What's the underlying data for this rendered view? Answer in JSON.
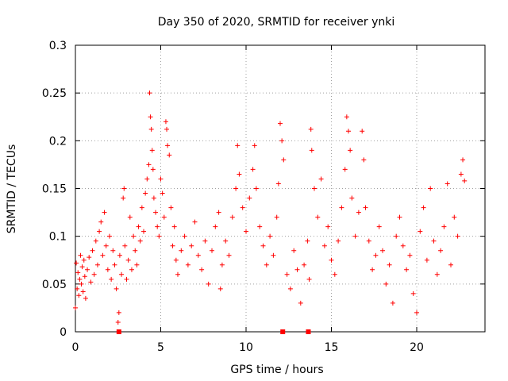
{
  "chart_data": {
    "type": "scatter",
    "title": "Day 350 of 2020, SRMTID for receiver ynki",
    "xlabel": "GPS time / hours",
    "ylabel": "SRMTID / TECUs",
    "xlim": [
      0,
      24
    ],
    "ylim": [
      0,
      0.3
    ],
    "grid": true,
    "x_ticks": [
      0,
      5,
      10,
      15,
      20
    ],
    "x_tick_labels": [
      "0",
      "5",
      "10",
      "15",
      "20"
    ],
    "y_ticks": [
      0,
      0.05,
      0.1,
      0.15,
      0.2,
      0.25,
      0.3
    ],
    "y_tick_labels": [
      "0",
      "0.05",
      "0.1",
      "0.15",
      "0.2",
      "0.25",
      "0.3"
    ],
    "marker": "+",
    "color": "#ff0000",
    "series": [
      {
        "name": "SRMTID",
        "points": [
          [
            0.0,
            0.025
          ],
          [
            0.05,
            0.072
          ],
          [
            0.1,
            0.045
          ],
          [
            0.15,
            0.062
          ],
          [
            0.2,
            0.038
          ],
          [
            0.25,
            0.055
          ],
          [
            0.3,
            0.08
          ],
          [
            0.35,
            0.05
          ],
          [
            0.4,
            0.068
          ],
          [
            0.45,
            0.042
          ],
          [
            0.5,
            0.075
          ],
          [
            0.55,
            0.058
          ],
          [
            0.6,
            0.035
          ],
          [
            0.7,
            0.065
          ],
          [
            0.8,
            0.078
          ],
          [
            0.9,
            0.052
          ],
          [
            1.0,
            0.085
          ],
          [
            1.1,
            0.06
          ],
          [
            1.2,
            0.095
          ],
          [
            1.3,
            0.07
          ],
          [
            1.4,
            0.105
          ],
          [
            1.5,
            0.115
          ],
          [
            1.6,
            0.08
          ],
          [
            1.7,
            0.125
          ],
          [
            1.8,
            0.09
          ],
          [
            1.9,
            0.065
          ],
          [
            2.0,
            0.1
          ],
          [
            2.1,
            0.055
          ],
          [
            2.2,
            0.085
          ],
          [
            2.3,
            0.07
          ],
          [
            2.4,
            0.045
          ],
          [
            2.5,
            0.01
          ],
          [
            2.55,
            0.02
          ],
          [
            2.6,
            0.08
          ],
          [
            2.7,
            0.06
          ],
          [
            2.8,
            0.14
          ],
          [
            2.85,
            0.15
          ],
          [
            2.9,
            0.09
          ],
          [
            3.0,
            0.055
          ],
          [
            3.1,
            0.075
          ],
          [
            3.2,
            0.12
          ],
          [
            3.3,
            0.065
          ],
          [
            3.4,
            0.1
          ],
          [
            3.5,
            0.085
          ],
          [
            3.6,
            0.07
          ],
          [
            3.7,
            0.11
          ],
          [
            3.8,
            0.095
          ],
          [
            3.9,
            0.13
          ],
          [
            4.0,
            0.105
          ],
          [
            4.1,
            0.145
          ],
          [
            4.2,
            0.16
          ],
          [
            4.3,
            0.175
          ],
          [
            4.35,
            0.25
          ],
          [
            4.4,
            0.225
          ],
          [
            4.45,
            0.212
          ],
          [
            4.5,
            0.19
          ],
          [
            4.55,
            0.17
          ],
          [
            4.6,
            0.14
          ],
          [
            4.7,
            0.125
          ],
          [
            4.8,
            0.11
          ],
          [
            4.9,
            0.1
          ],
          [
            5.0,
            0.16
          ],
          [
            5.1,
            0.145
          ],
          [
            5.2,
            0.12
          ],
          [
            5.3,
            0.22
          ],
          [
            5.35,
            0.212
          ],
          [
            5.4,
            0.195
          ],
          [
            5.5,
            0.185
          ],
          [
            5.6,
            0.13
          ],
          [
            5.7,
            0.09
          ],
          [
            5.8,
            0.11
          ],
          [
            5.9,
            0.075
          ],
          [
            6.0,
            0.06
          ],
          [
            6.2,
            0.085
          ],
          [
            6.4,
            0.1
          ],
          [
            6.6,
            0.07
          ],
          [
            6.8,
            0.09
          ],
          [
            7.0,
            0.115
          ],
          [
            7.2,
            0.08
          ],
          [
            7.4,
            0.065
          ],
          [
            7.6,
            0.095
          ],
          [
            7.8,
            0.05
          ],
          [
            8.0,
            0.085
          ],
          [
            8.2,
            0.11
          ],
          [
            8.4,
            0.125
          ],
          [
            8.5,
            0.045
          ],
          [
            8.6,
            0.07
          ],
          [
            8.8,
            0.095
          ],
          [
            9.0,
            0.08
          ],
          [
            9.2,
            0.12
          ],
          [
            9.4,
            0.15
          ],
          [
            9.5,
            0.195
          ],
          [
            9.6,
            0.165
          ],
          [
            9.8,
            0.13
          ],
          [
            10.0,
            0.105
          ],
          [
            10.2,
            0.14
          ],
          [
            10.4,
            0.17
          ],
          [
            10.5,
            0.195
          ],
          [
            10.6,
            0.15
          ],
          [
            10.8,
            0.11
          ],
          [
            11.0,
            0.09
          ],
          [
            11.2,
            0.07
          ],
          [
            11.4,
            0.1
          ],
          [
            11.6,
            0.08
          ],
          [
            11.8,
            0.12
          ],
          [
            11.9,
            0.155
          ],
          [
            12.0,
            0.218
          ],
          [
            12.1,
            0.2
          ],
          [
            12.2,
            0.18
          ],
          [
            12.4,
            0.06
          ],
          [
            12.6,
            0.045
          ],
          [
            12.8,
            0.085
          ],
          [
            13.0,
            0.065
          ],
          [
            13.2,
            0.03
          ],
          [
            13.4,
            0.07
          ],
          [
            13.6,
            0.095
          ],
          [
            13.7,
            0.055
          ],
          [
            13.8,
            0.212
          ],
          [
            13.85,
            0.19
          ],
          [
            14.0,
            0.15
          ],
          [
            14.2,
            0.12
          ],
          [
            14.4,
            0.16
          ],
          [
            14.6,
            0.09
          ],
          [
            14.8,
            0.11
          ],
          [
            15.0,
            0.075
          ],
          [
            15.2,
            0.06
          ],
          [
            15.4,
            0.095
          ],
          [
            15.6,
            0.13
          ],
          [
            15.8,
            0.17
          ],
          [
            15.9,
            0.225
          ],
          [
            16.0,
            0.21
          ],
          [
            16.1,
            0.19
          ],
          [
            16.2,
            0.14
          ],
          [
            16.4,
            0.1
          ],
          [
            16.6,
            0.125
          ],
          [
            16.8,
            0.21
          ],
          [
            16.9,
            0.18
          ],
          [
            17.0,
            0.13
          ],
          [
            17.2,
            0.095
          ],
          [
            17.4,
            0.065
          ],
          [
            17.6,
            0.08
          ],
          [
            17.8,
            0.11
          ],
          [
            18.0,
            0.085
          ],
          [
            18.2,
            0.05
          ],
          [
            18.4,
            0.07
          ],
          [
            18.6,
            0.03
          ],
          [
            18.8,
            0.1
          ],
          [
            19.0,
            0.12
          ],
          [
            19.2,
            0.09
          ],
          [
            19.4,
            0.065
          ],
          [
            19.6,
            0.08
          ],
          [
            19.8,
            0.04
          ],
          [
            20.0,
            0.02
          ],
          [
            20.2,
            0.105
          ],
          [
            20.4,
            0.13
          ],
          [
            20.6,
            0.075
          ],
          [
            20.8,
            0.15
          ],
          [
            21.0,
            0.095
          ],
          [
            21.2,
            0.06
          ],
          [
            21.4,
            0.085
          ],
          [
            21.6,
            0.11
          ],
          [
            21.8,
            0.155
          ],
          [
            22.0,
            0.07
          ],
          [
            22.2,
            0.12
          ],
          [
            22.4,
            0.1
          ],
          [
            22.6,
            0.165
          ],
          [
            22.7,
            0.18
          ],
          [
            22.8,
            0.158
          ]
        ]
      }
    ],
    "gap_markers_x": [
      2.55,
      12.15,
      13.65
    ]
  }
}
